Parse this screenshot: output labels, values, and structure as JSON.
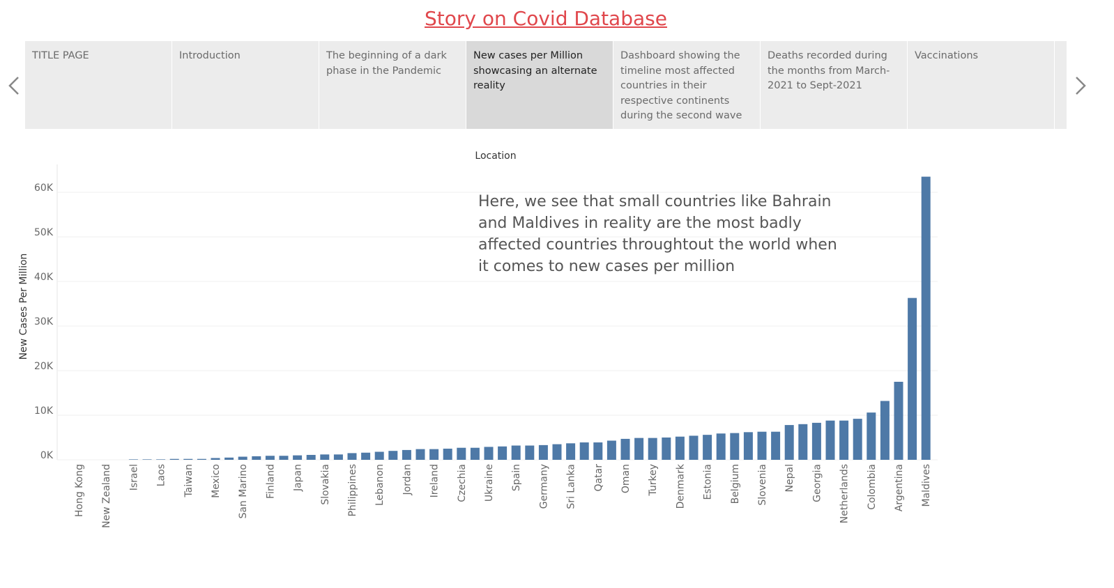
{
  "header": {
    "title": "Story on Covid Database"
  },
  "story_points": [
    "TITLE PAGE",
    "Introduction",
    "The beginning of a dark phase in the Pandemic",
    "New cases per Million showcasing an alternate reality",
    "Dashboard showing the timeline most affected countries in their respective continents during the second wave",
    "Deaths recorded during the months from March-2021 to Sept-2021",
    "Vaccinations"
  ],
  "chart_data": {
    "type": "bar",
    "title": "Location",
    "y_label": "New Cases Per Million",
    "annotation": [
      "Here, we see that small countries like Bahrain",
      "and Maldives in reality are the most badly",
      "affected countries throughtout the world when",
      "it comes to new cases per million"
    ],
    "categories": [
      "Hong Kong",
      null,
      "New Zealand",
      null,
      "Israel",
      null,
      "Laos",
      null,
      "Taiwan",
      null,
      "Mexico",
      null,
      "San Marino",
      null,
      "Finland",
      null,
      "Japan",
      null,
      "Slovakia",
      null,
      "Philippines",
      null,
      "Lebanon",
      null,
      "Jordan",
      null,
      "Ireland",
      null,
      "Czechia",
      null,
      "Ukraine",
      null,
      "Spain",
      null,
      "Germany",
      null,
      "Sri Lanka",
      null,
      "Qatar",
      null,
      "Oman",
      null,
      "Turkey",
      null,
      "Denmark",
      null,
      "Estonia",
      null,
      "Belgium",
      null,
      "Slovenia",
      null,
      "Nepal",
      null,
      "Georgia",
      null,
      "Netherlands",
      null,
      "Colombia",
      null,
      "Argentina",
      null,
      "Maldives"
    ],
    "values": [
      0,
      0,
      0,
      0,
      100,
      100,
      100,
      200,
      200,
      200,
      400,
      500,
      700,
      800,
      900,
      900,
      1000,
      1100,
      1200,
      1200,
      1500,
      1600,
      1800,
      2000,
      2200,
      2400,
      2400,
      2500,
      2700,
      2700,
      2900,
      3000,
      3200,
      3200,
      3300,
      3500,
      3700,
      3900,
      3900,
      4300,
      4700,
      4900,
      4900,
      5000,
      5200,
      5400,
      5600,
      5900,
      6000,
      6200,
      6300,
      6300,
      7800,
      8000,
      8300,
      8800,
      8800,
      9200,
      10600,
      13200,
      17500,
      36300,
      63500
    ],
    "color": "#4e79a7",
    "ylim": [
      0,
      65000
    ],
    "yticks": [
      {
        "value": 0,
        "label": "0K"
      },
      {
        "value": 10000,
        "label": "10K"
      },
      {
        "value": 20000,
        "label": "20K"
      },
      {
        "value": 30000,
        "label": "30K"
      },
      {
        "value": 40000,
        "label": "40K"
      },
      {
        "value": 50000,
        "label": "50K"
      },
      {
        "value": 60000,
        "label": "60K"
      }
    ],
    "grid": true
  }
}
